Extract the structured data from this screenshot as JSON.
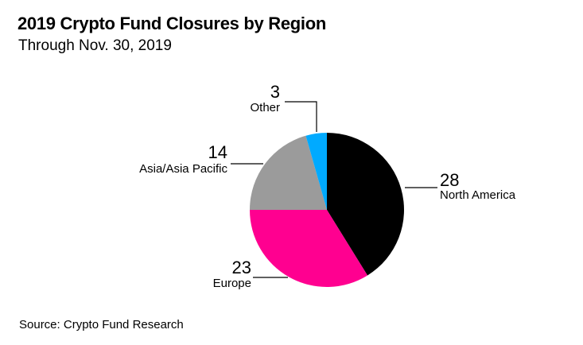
{
  "chart_data": {
    "type": "pie",
    "title": "2019 Crypto Fund Closures by Region",
    "subtitle": "Through Nov. 30, 2019",
    "source": "Source: Crypto Fund Research",
    "slices": [
      {
        "label": "North America",
        "value": 28,
        "color": "#000000"
      },
      {
        "label": "Europe",
        "value": 23,
        "color": "#ff0090"
      },
      {
        "label": "Asia/Asia Pacific",
        "value": 14,
        "color": "#9b9b9b"
      },
      {
        "label": "Other",
        "value": 3,
        "color": "#00aaff"
      }
    ]
  }
}
